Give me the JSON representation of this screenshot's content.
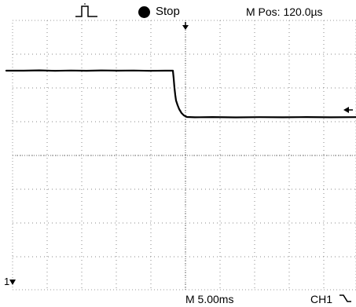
{
  "status": {
    "run_state": "Stop",
    "menu_position_readout": "M Pos: 120.0µs"
  },
  "timebase": {
    "label": "M 5.00ms"
  },
  "channel": {
    "label": "CH1",
    "ground_marker": "1"
  },
  "icons": {
    "trigger": "pulse-trigger-icon",
    "run_state": "stop-indicator-dot",
    "slope": "falling-edge-icon",
    "trigger_position": "down-arrow-icon",
    "trigger_level": "left-arrow-icon"
  },
  "colors": {
    "background": "#ffffff",
    "trace": "#000000",
    "grid": "#8a8a8a"
  },
  "display": {
    "grid_divisions_x": 10,
    "grid_divisions_y": 8,
    "trace_state": "falling step from high level to lower level"
  }
}
